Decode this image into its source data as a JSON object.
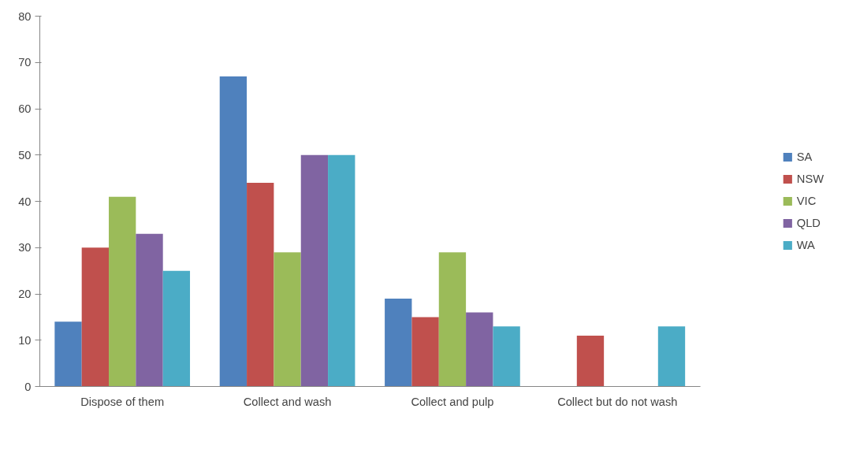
{
  "chart_data": {
    "type": "bar",
    "categories": [
      "Dispose of them",
      "Collect and wash",
      "Collect and pulp",
      "Collect but do not wash"
    ],
    "series": [
      {
        "name": "SA",
        "color": "#4f81bd",
        "values": [
          14,
          67,
          19,
          null
        ]
      },
      {
        "name": "NSW",
        "color": "#c0504d",
        "values": [
          30,
          44,
          15,
          11
        ]
      },
      {
        "name": "VIC",
        "color": "#9bbb59",
        "values": [
          41,
          29,
          29,
          null
        ]
      },
      {
        "name": "QLD",
        "color": "#8064a2",
        "values": [
          33,
          50,
          16,
          null
        ]
      },
      {
        "name": "WA",
        "color": "#4bacc6",
        "values": [
          25,
          50,
          13,
          13
        ]
      }
    ],
    "ylim": [
      0,
      80
    ],
    "yticks": [
      0,
      10,
      20,
      30,
      40,
      50,
      60,
      70,
      80
    ],
    "grid": false,
    "legend": "right"
  }
}
